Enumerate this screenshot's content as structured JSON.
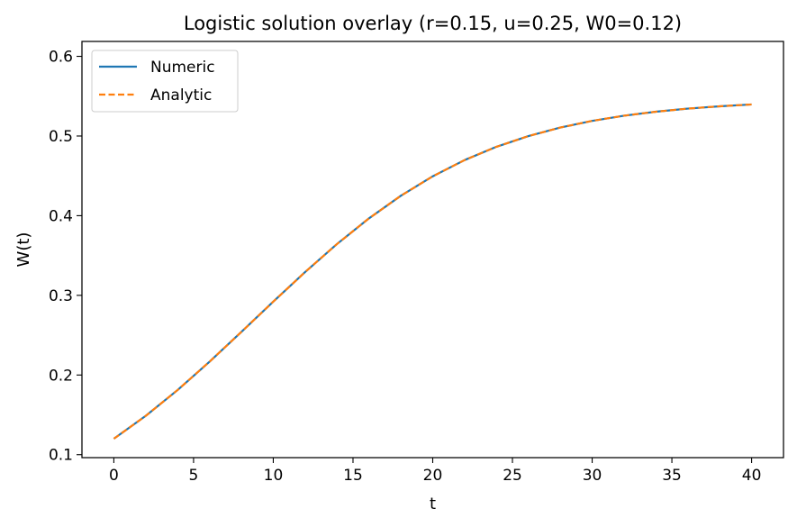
{
  "chart_data": {
    "type": "line",
    "title": "Logistic solution overlay (r=0.15, u=0.25, W0=0.12)",
    "xlabel": "t",
    "ylabel": "W(t)",
    "xlim": [
      -2,
      42
    ],
    "ylim": [
      0.0963,
      0.6187
    ],
    "xticks": [
      0,
      5,
      10,
      15,
      20,
      25,
      30,
      35,
      40
    ],
    "yticks": [
      0.1,
      0.2,
      0.3,
      0.4,
      0.5,
      0.6
    ],
    "grid": false,
    "legend_position": "top-left",
    "x": [
      0,
      2,
      4,
      6,
      8,
      10,
      12,
      14,
      16,
      18,
      20,
      22,
      24,
      26,
      28,
      30,
      32,
      34,
      36,
      38,
      40
    ],
    "series": [
      {
        "name": "Numeric",
        "color": "#1f77b4",
        "style": "solid",
        "values": [
          0.12,
          0.1487,
          0.1812,
          0.2167,
          0.2541,
          0.2921,
          0.3293,
          0.3645,
          0.3966,
          0.425,
          0.4494,
          0.4698,
          0.4865,
          0.4999,
          0.5106,
          0.519,
          0.5255,
          0.5305,
          0.5344,
          0.5373,
          0.5396
        ]
      },
      {
        "name": "Analytic",
        "color": "#ff7f0e",
        "style": "dashed",
        "values": [
          0.12,
          0.1487,
          0.1812,
          0.2167,
          0.2541,
          0.2921,
          0.3293,
          0.3645,
          0.3966,
          0.425,
          0.4494,
          0.4698,
          0.4865,
          0.4999,
          0.5106,
          0.519,
          0.5255,
          0.5305,
          0.5344,
          0.5373,
          0.5396
        ]
      }
    ]
  }
}
